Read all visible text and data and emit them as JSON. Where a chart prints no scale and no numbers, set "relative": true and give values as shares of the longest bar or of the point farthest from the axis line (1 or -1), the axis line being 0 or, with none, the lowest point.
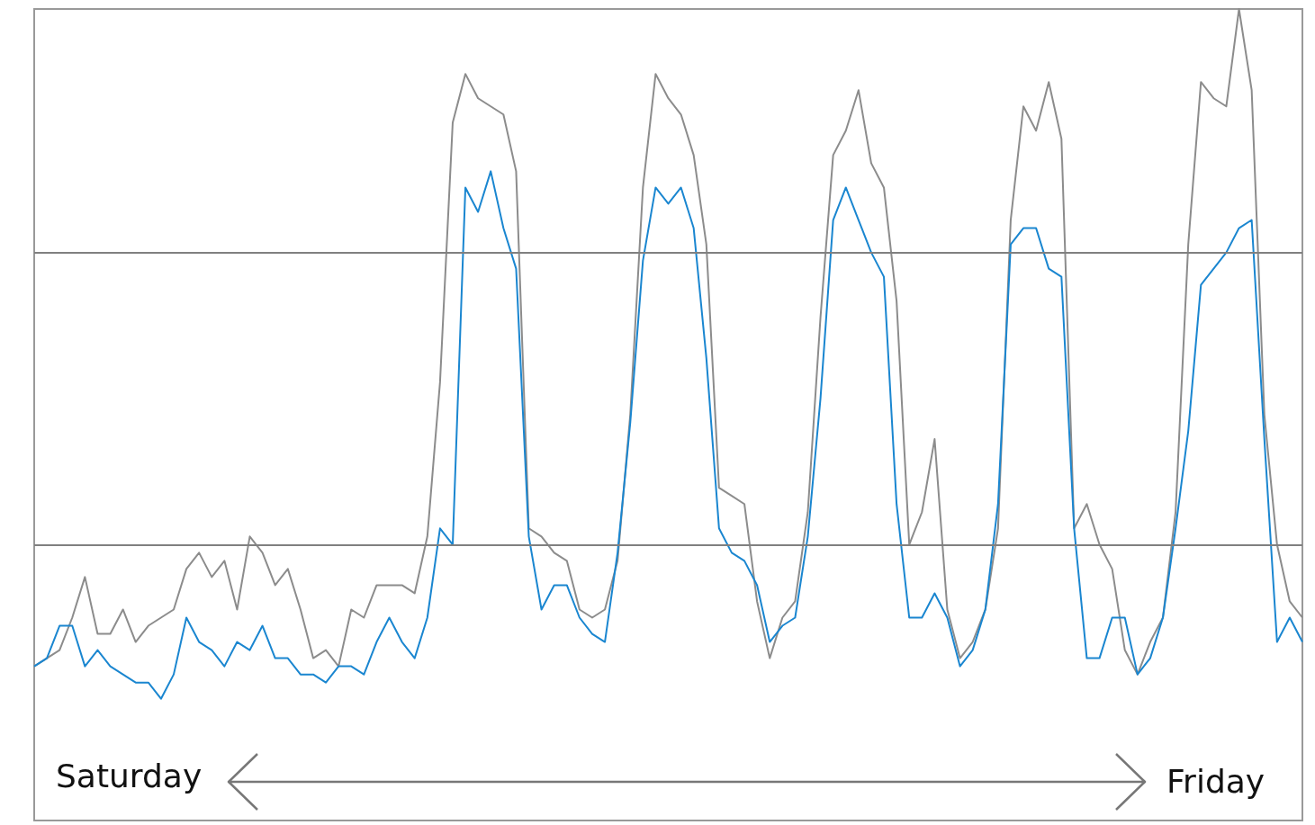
{
  "chart_data": {
    "type": "line",
    "relative": true,
    "marker": "none",
    "categories": [
      null,
      null,
      null,
      null,
      null,
      null,
      null,
      null,
      null,
      null,
      null,
      null,
      null,
      null,
      null,
      null,
      null,
      null,
      null,
      null,
      null,
      null,
      null,
      null,
      null,
      null,
      null,
      null,
      null,
      null,
      null,
      null,
      null,
      null,
      null,
      null,
      null,
      null,
      null,
      null,
      null,
      null,
      null,
      null,
      null,
      null,
      null,
      null,
      null,
      null,
      null,
      null,
      null,
      null,
      null,
      null,
      null,
      null,
      null,
      null,
      null,
      null,
      null,
      null,
      null,
      null,
      null,
      null,
      null,
      null,
      null,
      null,
      null,
      null,
      null,
      null,
      null,
      null,
      null,
      null,
      null,
      null,
      null,
      null,
      null,
      null,
      null,
      null,
      null,
      null,
      null,
      null,
      null,
      null,
      null,
      null,
      null,
      null,
      null,
      null,
      null
    ],
    "series": [
      {
        "color": "#8c8c8c",
        "values": [
          0.19,
          0.2,
          0.21,
          0.25,
          0.3,
          0.23,
          0.23,
          0.26,
          0.22,
          0.24,
          0.25,
          0.26,
          0.31,
          0.33,
          0.3,
          0.32,
          0.26,
          0.35,
          0.33,
          0.29,
          0.31,
          0.26,
          0.2,
          0.21,
          0.19,
          0.26,
          0.25,
          0.29,
          0.29,
          0.29,
          0.28,
          0.35,
          0.54,
          0.86,
          0.92,
          0.89,
          0.88,
          0.87,
          0.8,
          0.36,
          0.35,
          0.33,
          0.32,
          0.26,
          0.25,
          0.26,
          0.32,
          0.5,
          0.78,
          0.92,
          0.89,
          0.87,
          0.82,
          0.71,
          0.41,
          0.4,
          0.39,
          0.27,
          0.2,
          0.25,
          0.27,
          0.38,
          0.62,
          0.82,
          0.85,
          0.9,
          0.81,
          0.78,
          0.64,
          0.34,
          0.38,
          0.47,
          0.26,
          0.2,
          0.22,
          0.26,
          0.36,
          0.74,
          0.88,
          0.85,
          0.91,
          0.84,
          0.36,
          0.39,
          0.34,
          0.31,
          0.21,
          0.18,
          0.22,
          0.25,
          0.38,
          0.71,
          0.91,
          0.89,
          0.88,
          1,
          0.9,
          0.5,
          0.34,
          0.27,
          0.25
        ]
      },
      {
        "color": "#1a86d0",
        "values": [
          0.19,
          0.2,
          0.24,
          0.24,
          0.19,
          0.21,
          0.19,
          0.18,
          0.17,
          0.17,
          0.15,
          0.18,
          0.25,
          0.22,
          0.21,
          0.19,
          0.22,
          0.21,
          0.24,
          0.2,
          0.2,
          0.18,
          0.18,
          0.17,
          0.19,
          0.19,
          0.18,
          0.22,
          0.25,
          0.22,
          0.2,
          0.25,
          0.36,
          0.34,
          0.78,
          0.75,
          0.8,
          0.73,
          0.68,
          0.35,
          0.26,
          0.29,
          0.29,
          0.25,
          0.23,
          0.22,
          0.33,
          0.49,
          0.69,
          0.78,
          0.76,
          0.78,
          0.73,
          0.57,
          0.36,
          0.33,
          0.32,
          0.29,
          0.22,
          0.24,
          0.25,
          0.35,
          0.52,
          0.74,
          0.78,
          0.74,
          0.7,
          0.67,
          0.39,
          0.25,
          0.25,
          0.28,
          0.25,
          0.19,
          0.21,
          0.26,
          0.39,
          0.71,
          0.73,
          0.73,
          0.68,
          0.67,
          0.36,
          0.2,
          0.2,
          0.25,
          0.25,
          0.18,
          0.2,
          0.25,
          0.36,
          0.48,
          0.66,
          0.68,
          0.7,
          0.73,
          0.74,
          0.47,
          0.22,
          0.25,
          0.22
        ]
      }
    ],
    "ref_lines": [
      {
        "axis": "y",
        "value": 0.7,
        "color": "#808080"
      },
      {
        "axis": "y",
        "value": 0.34,
        "color": "#808080"
      }
    ],
    "annotations": [
      "Saturday",
      "Friday"
    ]
  }
}
